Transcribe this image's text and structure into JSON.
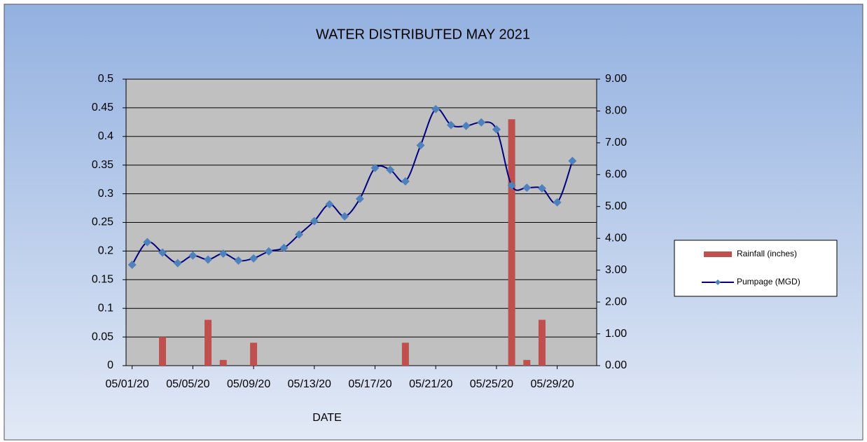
{
  "chart_data": {
    "type": "bar-line",
    "title": "WATER DISTRIBUTED MAY 2021",
    "x_label": "DATE",
    "x": [
      1,
      2,
      3,
      4,
      5,
      6,
      7,
      8,
      9,
      10,
      11,
      12,
      13,
      14,
      15,
      16,
      17,
      18,
      19,
      20,
      21,
      22,
      23,
      24,
      25,
      26,
      27,
      28,
      29,
      30
    ],
    "xlim": [
      0.6,
      31.6
    ],
    "xticks": [
      {
        "value": 1,
        "label": "05/01/20"
      },
      {
        "value": 5,
        "label": "05/05/20"
      },
      {
        "value": 9,
        "label": "05/09/20"
      },
      {
        "value": 13,
        "label": "05/13/20"
      },
      {
        "value": 17,
        "label": "05/17/20"
      },
      {
        "value": 21,
        "label": "05/21/20"
      },
      {
        "value": 25,
        "label": "05/25/20"
      },
      {
        "value": 29,
        "label": "05/29/20"
      }
    ],
    "ylim": [
      0,
      0.5
    ],
    "yticks": [
      0,
      0.05,
      0.1,
      0.15,
      0.2,
      0.25,
      0.3,
      0.35,
      0.4,
      0.45,
      0.5
    ],
    "y2lim": [
      0,
      9
    ],
    "y2ticks": [
      {
        "value": 0,
        "label": "0.00"
      },
      {
        "value": 1,
        "label": "1.00"
      },
      {
        "value": 2,
        "label": "2.00"
      },
      {
        "value": 3,
        "label": "3.00"
      },
      {
        "value": 4,
        "label": "4.00"
      },
      {
        "value": 5,
        "label": "5.00"
      },
      {
        "value": 6,
        "label": "6.00"
      },
      {
        "value": 7,
        "label": "7.00"
      },
      {
        "value": 8,
        "label": "8.00"
      },
      {
        "value": 9,
        "label": "9.00"
      }
    ],
    "grid": true,
    "legend": "right",
    "series": [
      {
        "name": "Rainfall (inches)",
        "type": "bar",
        "color": "#c0504d",
        "values": [
          0,
          0,
          0.05,
          0,
          0,
          0.08,
          0.01,
          0,
          0.04,
          0,
          0,
          0,
          0,
          0,
          0,
          0,
          0,
          0,
          0.04,
          0,
          0,
          0,
          0,
          0,
          0,
          0.43,
          0.01,
          0.08,
          0,
          0
        ]
      },
      {
        "name": "Pumpage (MGD)",
        "type": "line",
        "axis": "y2",
        "color": "#000080",
        "marker_color": "#4f81bd",
        "values": [
          3.17,
          3.88,
          3.55,
          3.22,
          3.46,
          3.33,
          3.52,
          3.3,
          3.37,
          3.59,
          3.7,
          4.12,
          4.54,
          5.07,
          4.69,
          5.24,
          6.21,
          6.15,
          5.79,
          6.92,
          8.06,
          7.56,
          7.53,
          7.64,
          7.42,
          5.66,
          5.59,
          5.57,
          5.13,
          6.43
        ]
      }
    ]
  }
}
